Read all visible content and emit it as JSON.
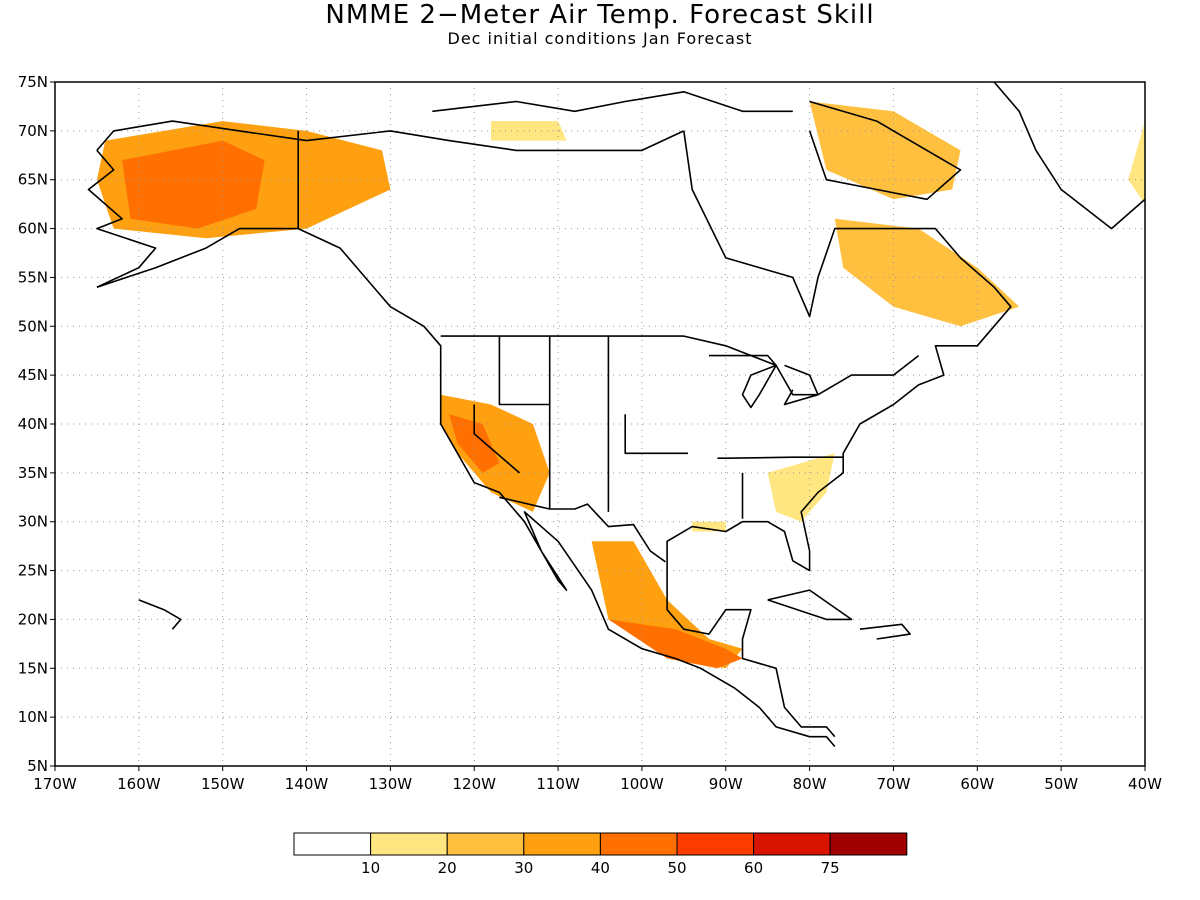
{
  "title": "NMME 2−Meter Air Temp. Forecast Skill",
  "subtitle": "Dec initial conditions  Jan Forecast",
  "lat_ticks": [
    "75N",
    "70N",
    "65N",
    "60N",
    "55N",
    "50N",
    "45N",
    "40N",
    "35N",
    "30N",
    "25N",
    "20N",
    "15N",
    "10N",
    "5N"
  ],
  "lon_ticks": [
    "170W",
    "160W",
    "150W",
    "140W",
    "130W",
    "120W",
    "110W",
    "100W",
    "90W",
    "80W",
    "70W",
    "60W",
    "50W",
    "40W"
  ],
  "map_extent": {
    "lon_min": -170,
    "lon_max": -40,
    "lat_min": 5,
    "lat_max": 75
  },
  "legend": {
    "labels": [
      "10",
      "20",
      "30",
      "40",
      "50",
      "60",
      "75"
    ],
    "colors": [
      "#ffffff",
      "#ffe680",
      "#ffc040",
      "#ffa010",
      "#ff7000",
      "#ff3c00",
      "#d81400",
      "#a00000"
    ]
  },
  "skill_regions": [
    {
      "name": "alaska",
      "level": 3,
      "points": [
        [
          -164,
          69
        ],
        [
          -150,
          71
        ],
        [
          -140,
          70
        ],
        [
          -131,
          68
        ],
        [
          -130,
          64
        ],
        [
          -140,
          60
        ],
        [
          -152,
          59
        ],
        [
          -163,
          60
        ],
        [
          -165,
          65
        ]
      ]
    },
    {
      "name": "alaska-core",
      "level": 4,
      "points": [
        [
          -162,
          67
        ],
        [
          -150,
          69
        ],
        [
          -145,
          67
        ],
        [
          -146,
          62
        ],
        [
          -153,
          60
        ],
        [
          -161,
          61
        ]
      ]
    },
    {
      "name": "canada-arctic",
      "level": 1,
      "points": [
        [
          -118,
          71
        ],
        [
          -110,
          71
        ],
        [
          -109,
          69
        ],
        [
          -118,
          69
        ]
      ]
    },
    {
      "name": "baffin",
      "level": 2,
      "points": [
        [
          -80,
          73
        ],
        [
          -70,
          72
        ],
        [
          -62,
          68
        ],
        [
          -63,
          64
        ],
        [
          -70,
          63
        ],
        [
          -78,
          66
        ]
      ]
    },
    {
      "name": "labrador",
      "level": 2,
      "points": [
        [
          -77,
          61
        ],
        [
          -67,
          60
        ],
        [
          -60,
          56
        ],
        [
          -55,
          52
        ],
        [
          -62,
          50
        ],
        [
          -70,
          52
        ],
        [
          -76,
          56
        ]
      ]
    },
    {
      "name": "greenland",
      "level": 1,
      "points": [
        [
          -40,
          71
        ],
        [
          -34,
          70
        ],
        [
          -30,
          66
        ],
        [
          -35,
          61
        ],
        [
          -38,
          60
        ],
        [
          -42,
          65
        ]
      ]
    },
    {
      "name": "west-us",
      "level": 3,
      "points": [
        [
          -124,
          43
        ],
        [
          -118,
          42
        ],
        [
          -113,
          40
        ],
        [
          -111,
          35
        ],
        [
          -113,
          31
        ],
        [
          -118,
          33
        ],
        [
          -122,
          37
        ],
        [
          -124,
          40
        ]
      ]
    },
    {
      "name": "california",
      "level": 4,
      "points": [
        [
          -123,
          41
        ],
        [
          -119,
          40
        ],
        [
          -117,
          36
        ],
        [
          -119,
          35
        ],
        [
          -122,
          38
        ]
      ]
    },
    {
      "name": "mexico",
      "level": 3,
      "points": [
        [
          -106,
          28
        ],
        [
          -101,
          28
        ],
        [
          -97,
          22
        ],
        [
          -92,
          18
        ],
        [
          -88,
          17
        ],
        [
          -90,
          15
        ],
        [
          -96,
          16
        ],
        [
          -104,
          20
        ],
        [
          -105,
          24
        ]
      ]
    },
    {
      "name": "south-mexico",
      "level": 4,
      "points": [
        [
          -104,
          20
        ],
        [
          -96,
          19
        ],
        [
          -90,
          17
        ],
        [
          -88,
          16
        ],
        [
          -91,
          15
        ],
        [
          -97,
          16
        ]
      ]
    },
    {
      "name": "southeast-us",
      "level": 1,
      "points": [
        [
          -85,
          35
        ],
        [
          -77,
          37
        ],
        [
          -78,
          33
        ],
        [
          -81,
          30
        ],
        [
          -84,
          31
        ]
      ]
    },
    {
      "name": "texas-coast",
      "level": 1,
      "points": [
        [
          -94,
          30
        ],
        [
          -90,
          30
        ],
        [
          -90,
          29
        ],
        [
          -94,
          29
        ]
      ]
    }
  ]
}
